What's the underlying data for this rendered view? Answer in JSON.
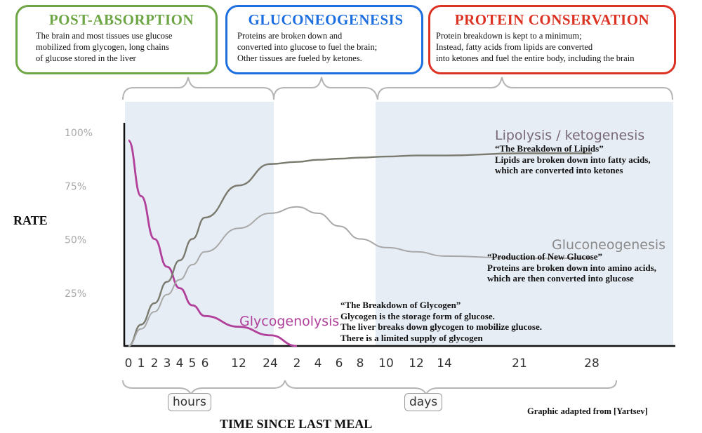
{
  "phases": [
    {
      "title": "POST-ABSORPTION",
      "lines": [
        "The brain and most tissues use glucose",
        "mobilized from glycogen, long chains",
        "of glucose stored in the liver"
      ],
      "color": "#6ea646"
    },
    {
      "title": "GLUCONEOGENESIS",
      "lines": [
        "Proteins are broken down and",
        "converted into glucose to fuel the brain;",
        "Other tissues are fueled by ketones."
      ],
      "color": "#1d6fe0"
    },
    {
      "title": "PROTEIN CONSERVATION",
      "lines": [
        "Protein breakdown is kept to a minimum;",
        "Instead, fatty acids from lipids are converted",
        "into ketones and fuel the entire body, including the brain"
      ],
      "color": "#dc3223"
    }
  ],
  "chart_data": {
    "type": "line",
    "ylabel": "RATE",
    "xlabel": "TIME SINCE LAST MEAL",
    "y_ticks": [
      "100%",
      "75%",
      "50%",
      "25%"
    ],
    "ylim": [
      0,
      100
    ],
    "x_ticks": [
      "0",
      "1",
      "2",
      "3",
      "4",
      "5",
      "6",
      "12",
      "24",
      "2",
      "4",
      "6",
      "8",
      "10",
      "12",
      "14",
      "21",
      "28"
    ],
    "x_groups": [
      "hours",
      "days"
    ],
    "series": [
      {
        "name": "Glycogenolysis",
        "color": "#b0409a",
        "points": [
          [
            0,
            96
          ],
          [
            1,
            70
          ],
          [
            2,
            50
          ],
          [
            3,
            37
          ],
          [
            4,
            27
          ],
          [
            5,
            19
          ],
          [
            6,
            14
          ],
          [
            7,
            9
          ],
          [
            8,
            5
          ],
          [
            9,
            0
          ]
        ]
      },
      {
        "name": "Lipolysis / ketogenesis",
        "color": "#7a7a6e",
        "points": [
          [
            0,
            0
          ],
          [
            1,
            10
          ],
          [
            2,
            20
          ],
          [
            3,
            30
          ],
          [
            4,
            40
          ],
          [
            5,
            50
          ],
          [
            6,
            60
          ],
          [
            7,
            75
          ],
          [
            8,
            85
          ],
          [
            9,
            86
          ],
          [
            10,
            87
          ],
          [
            11,
            87.5
          ],
          [
            12,
            88
          ],
          [
            13,
            88.5
          ],
          [
            14,
            89
          ],
          [
            15,
            89
          ],
          [
            16,
            90
          ],
          [
            17,
            90
          ]
        ]
      },
      {
        "name": "Gluconeogenesis",
        "color": "#a8a8a8",
        "points": [
          [
            0,
            0
          ],
          [
            1,
            8
          ],
          [
            2,
            16
          ],
          [
            3,
            24
          ],
          [
            4,
            31
          ],
          [
            5,
            38
          ],
          [
            6,
            44
          ],
          [
            7,
            55
          ],
          [
            8,
            62
          ],
          [
            9,
            65
          ],
          [
            10,
            62
          ],
          [
            11,
            56
          ],
          [
            12,
            50
          ],
          [
            13,
            46
          ],
          [
            14,
            44
          ],
          [
            15,
            42
          ],
          [
            16,
            41
          ],
          [
            17,
            41
          ]
        ]
      }
    ],
    "annotations": [
      {
        "series": "Lipolysis / ketogenesis",
        "lines": [
          "“The Breakdown of Lipids”",
          "Lipids are broken down into fatty acids,",
          "which are converted into ketones"
        ]
      },
      {
        "series": "Gluconeogenesis",
        "lines": [
          "“Production of New Glucose”",
          "Proteins are broken down into amino acids,",
          "which are then converted into glucose"
        ]
      },
      {
        "series": "Glycogenolysis",
        "lines": [
          "“The Breakdown of Glycogen”",
          "Glycogen is the storage form of glucose.",
          "The liver breaks down glycogen to mobilize glucose.",
          "There is a limited supply of glycogen"
        ]
      }
    ]
  },
  "credit": "Graphic adapted from [Yartsev]"
}
